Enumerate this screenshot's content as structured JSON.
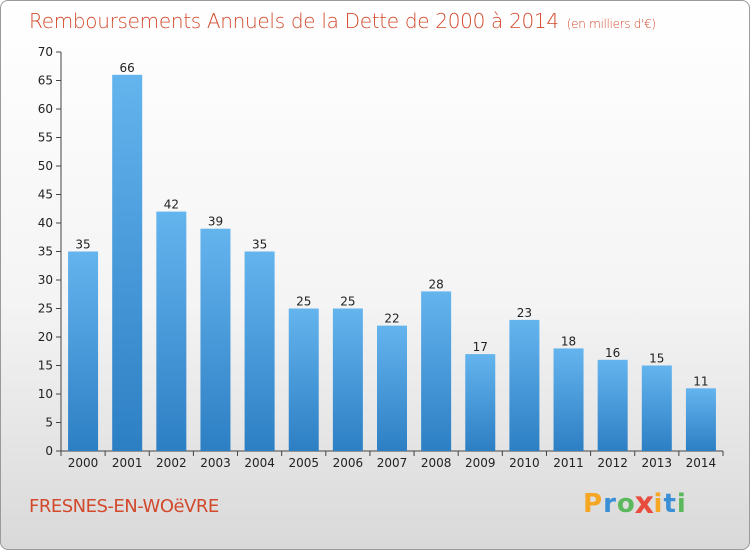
{
  "header": {
    "title": "Remboursements Annuels de la Dette de 2000 à 2014",
    "unit": "(en milliers d'€)"
  },
  "footer": {
    "town": "FRESNES-EN-WOëVRE",
    "logo_letters": [
      "P",
      "r",
      "o",
      "x",
      "i",
      "t",
      "i"
    ],
    "logo_colors": [
      "#f5a623",
      "#3b8fd6",
      "#5cb85c",
      "#e84c3d",
      "#f5a623",
      "#3b8fd6",
      "#5cb85c"
    ]
  },
  "chart_data": {
    "type": "bar",
    "categories": [
      "2000",
      "2001",
      "2002",
      "2003",
      "2004",
      "2005",
      "2006",
      "2007",
      "2008",
      "2009",
      "2010",
      "2011",
      "2012",
      "2013",
      "2014"
    ],
    "values": [
      35,
      66,
      42,
      39,
      35,
      25,
      25,
      22,
      28,
      17,
      23,
      18,
      16,
      15,
      11
    ],
    "title": "Remboursements Annuels de la Dette de 2000 à 2014",
    "ylim": [
      0,
      70
    ],
    "yticks": [
      0,
      5,
      10,
      15,
      20,
      25,
      30,
      35,
      40,
      45,
      50,
      55,
      60,
      65,
      70
    ],
    "grid": false,
    "legend": "none",
    "bar_color_top": "#64b4ee",
    "bar_color_bottom": "#2d7fc4"
  }
}
